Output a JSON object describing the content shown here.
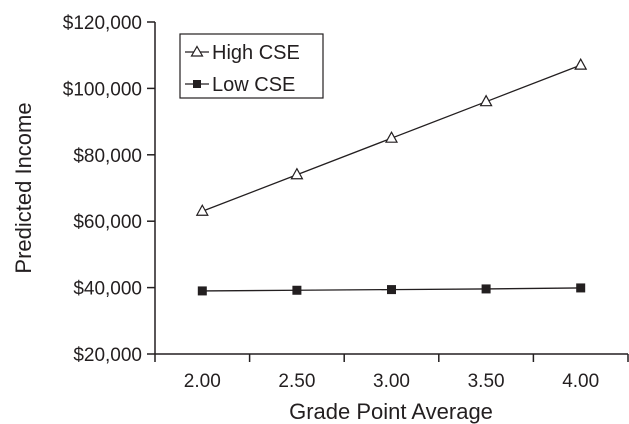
{
  "chart_data": {
    "type": "line",
    "xlabel": "Grade Point Average",
    "ylabel": "Predicted Income",
    "x_categories": [
      "2.00",
      "2.50",
      "3.00",
      "3.50",
      "4.00"
    ],
    "x_values": [
      2.0,
      2.5,
      3.0,
      3.5,
      4.0
    ],
    "ylim": [
      20000,
      120000
    ],
    "y_ticks": [
      20000,
      40000,
      60000,
      80000,
      100000,
      120000
    ],
    "y_tick_labels": [
      "$20,000",
      "$40,000",
      "$60,000",
      "$80,000",
      "$100,000",
      "$120,000"
    ],
    "grid": false,
    "legend_position": "top-left",
    "series": [
      {
        "name": "High CSE",
        "marker": "open-triangle",
        "color": "#231f20",
        "values": [
          63000,
          74000,
          85000,
          96000,
          107000
        ]
      },
      {
        "name": "Low CSE",
        "marker": "filled-square",
        "color": "#231f20",
        "values": [
          39000,
          39200,
          39400,
          39600,
          39900
        ]
      }
    ]
  }
}
